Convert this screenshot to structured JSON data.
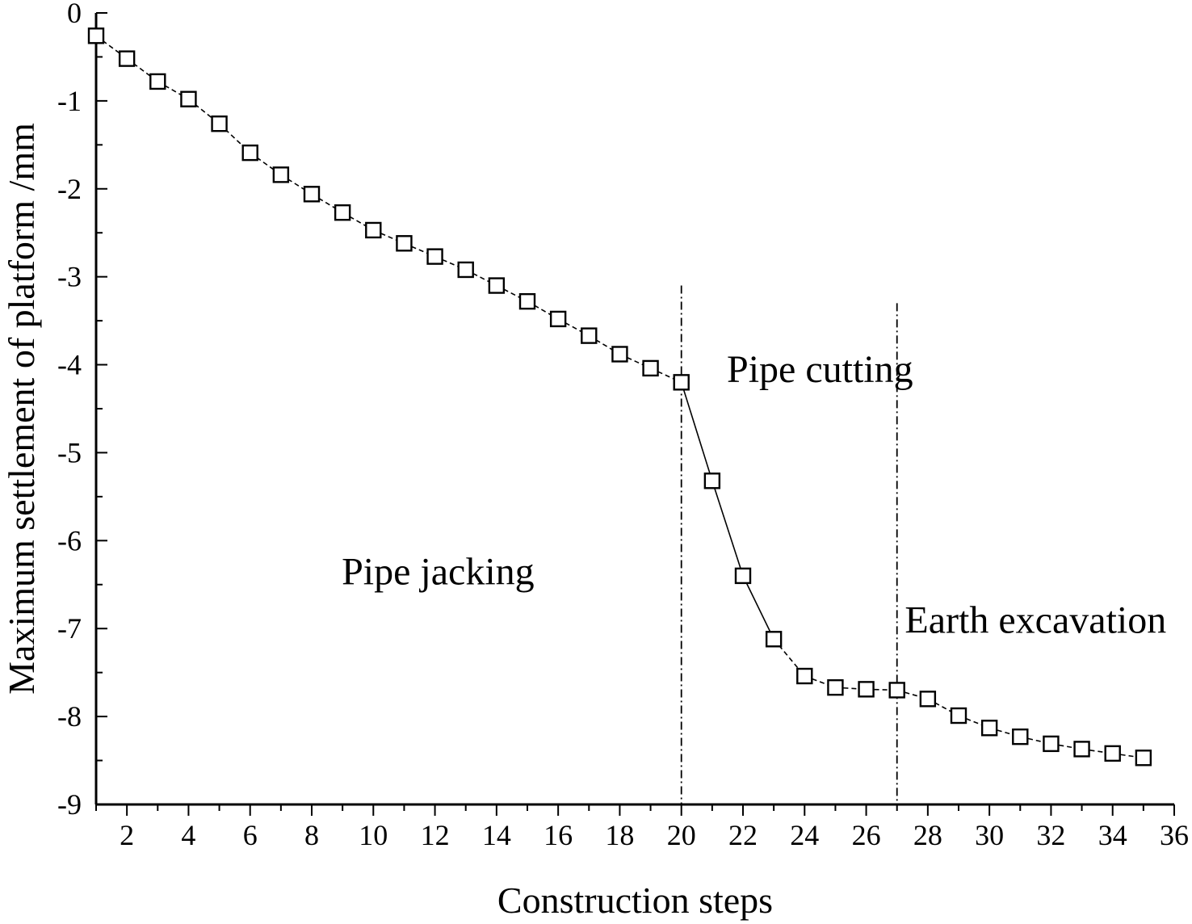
{
  "chart_data": {
    "type": "line",
    "xlabel": "Construction steps",
    "ylabel": "Maximum settlement of platform /mm",
    "xlim": [
      1,
      36
    ],
    "ylim": [
      -9,
      0
    ],
    "xticks": [
      2,
      4,
      6,
      8,
      10,
      12,
      14,
      16,
      18,
      20,
      22,
      24,
      26,
      28,
      30,
      32,
      34,
      36
    ],
    "yticks": [
      0,
      -1,
      -2,
      -3,
      -4,
      -5,
      -6,
      -7,
      -8,
      -9
    ],
    "grid": false,
    "legend": "none",
    "series": [
      {
        "marker": "open-square",
        "color": "#000000",
        "x": [
          1,
          2,
          3,
          4,
          5,
          6,
          7,
          8,
          9,
          10,
          11,
          12,
          13,
          14,
          15,
          16,
          17,
          18,
          19,
          20,
          21,
          22,
          23,
          24,
          25,
          26,
          27,
          28,
          29,
          30,
          31,
          32,
          33,
          34,
          35
        ],
        "y": [
          -0.26,
          -0.52,
          -0.78,
          -0.98,
          -1.26,
          -1.59,
          -1.84,
          -2.06,
          -2.27,
          -2.47,
          -2.62,
          -2.77,
          -2.92,
          -3.1,
          -3.28,
          -3.48,
          -3.67,
          -3.88,
          -4.04,
          -4.2,
          -5.32,
          -6.4,
          -7.12,
          -7.54,
          -7.67,
          -7.69,
          -7.7,
          -7.8,
          -7.99,
          -8.13,
          -8.23,
          -8.31,
          -8.37,
          -8.42,
          -8.47
        ]
      }
    ],
    "reference_lines": [
      {
        "orientation": "vertical",
        "x": 20,
        "style": "dash-dot"
      },
      {
        "orientation": "vertical",
        "x": 27,
        "style": "dash-dot"
      }
    ],
    "annotations": [
      {
        "text": "Pipe jacking",
        "x": 12.1,
        "y": -6.35
      },
      {
        "text": "Pipe cutting",
        "x": 24.5,
        "y": -4.05
      },
      {
        "text": "Earth excavation",
        "x": 31.5,
        "y": -6.9
      }
    ]
  }
}
